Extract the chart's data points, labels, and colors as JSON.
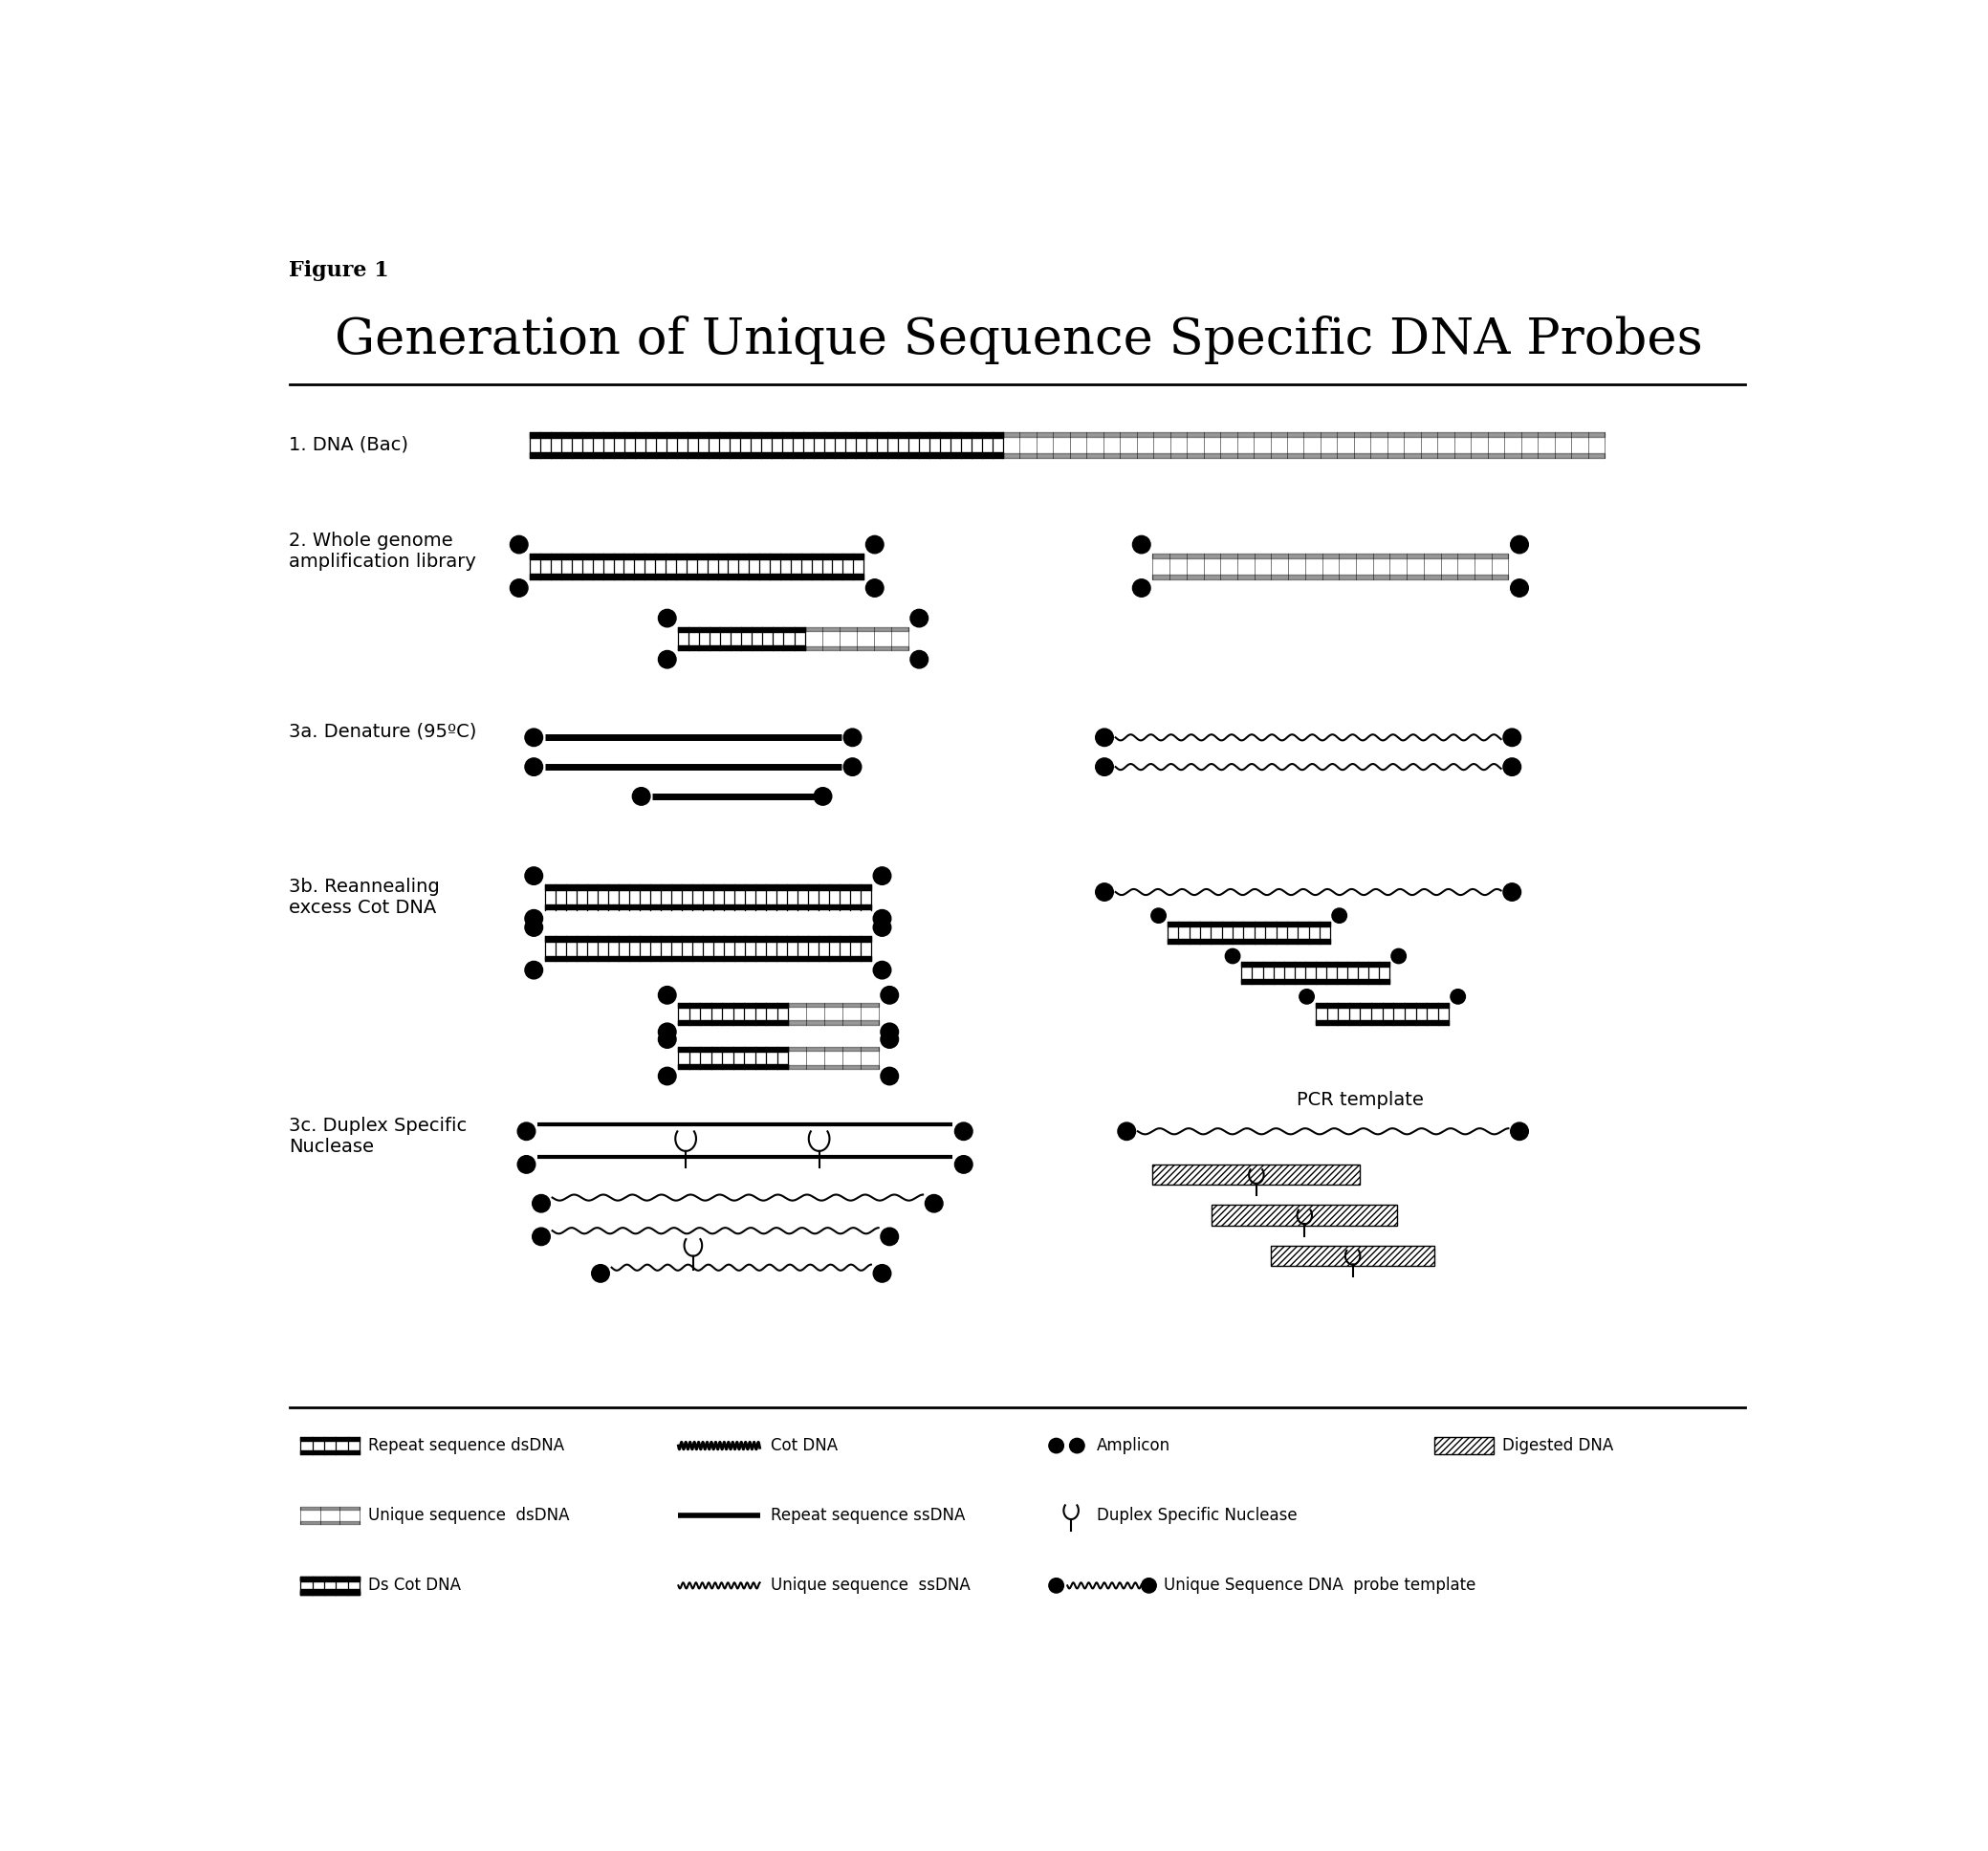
{
  "title": "Generation of Unique Sequence Specific DNA Probes",
  "figure_label": "Figure 1",
  "bg_color": "#ffffff",
  "text_color": "#000000",
  "steps": [
    "1. DNA (Bac)",
    "2. Whole genome\namplification library",
    "3a. Denature (95ºC)",
    "3b. Reannealing\nexcess Cot DNA",
    "3c. Duplex Specific\nNuclease"
  ]
}
